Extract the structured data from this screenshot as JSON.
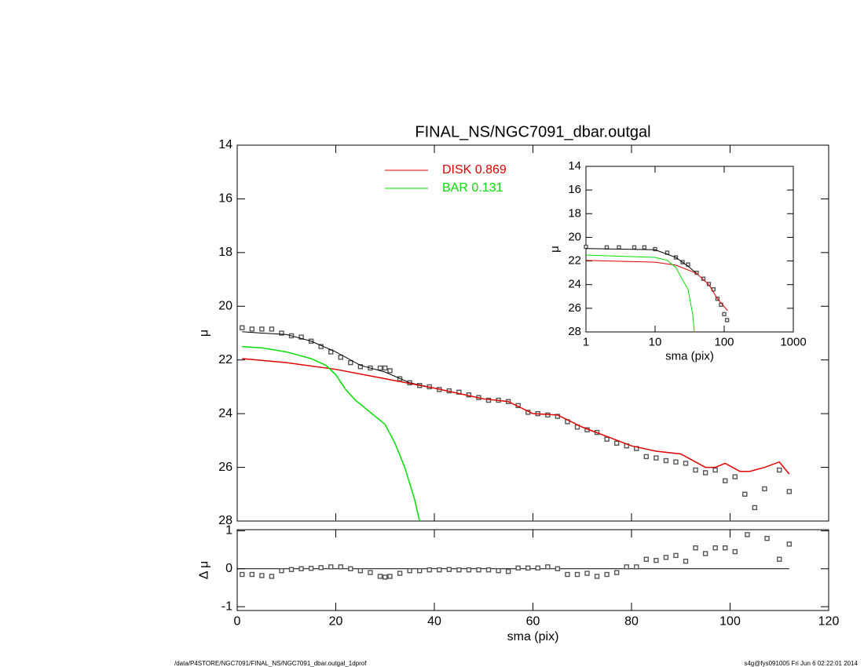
{
  "chart_data": [
    {
      "type": "line",
      "title": "FINAL_NS/NGC7091_dbar.outgal",
      "ylabel": "μ",
      "xlim": [
        0,
        120
      ],
      "xticks": [
        0,
        20,
        40,
        60,
        80,
        100,
        120
      ],
      "show_xtick_labels": false,
      "ylim": [
        14,
        28
      ],
      "yticks": [
        14,
        16,
        18,
        20,
        22,
        24,
        26,
        28
      ],
      "y_inverted": true,
      "xscale": "linear",
      "series": [
        {
          "style": "markers",
          "color": "#555555",
          "x": [
            1,
            3,
            5,
            7,
            9,
            11,
            13,
            15,
            17,
            19,
            21,
            23,
            25,
            27,
            29,
            30,
            31,
            33,
            35,
            37,
            39,
            41,
            43,
            45,
            47,
            49,
            51,
            53,
            55,
            57,
            59,
            61,
            63,
            65,
            67,
            69,
            71,
            73,
            75,
            77,
            79,
            81,
            83,
            85,
            87,
            89,
            91,
            93,
            95,
            97,
            99,
            101,
            103,
            105,
            107,
            110,
            112
          ],
          "values": [
            20.8,
            20.85,
            20.85,
            20.85,
            21.0,
            21.1,
            21.15,
            21.3,
            21.5,
            21.7,
            21.9,
            22.1,
            22.25,
            22.3,
            22.3,
            22.3,
            22.4,
            22.7,
            22.85,
            22.95,
            23.0,
            23.1,
            23.15,
            23.2,
            23.3,
            23.4,
            23.5,
            23.5,
            23.55,
            23.7,
            23.95,
            24.0,
            24.05,
            24.1,
            24.3,
            24.5,
            24.6,
            24.7,
            24.95,
            25.1,
            25.2,
            25.3,
            25.6,
            25.65,
            25.75,
            25.8,
            25.85,
            26.1,
            26.2,
            26.1,
            26.5,
            26.35,
            27.0,
            27.5,
            26.8,
            26.1,
            26.9
          ]
        },
        {
          "style": "line",
          "color": "#000000",
          "width": 1,
          "x": [
            1,
            5,
            10,
            15,
            20,
            25,
            30,
            35,
            40
          ],
          "values": [
            20.95,
            21.0,
            21.05,
            21.3,
            21.7,
            22.2,
            22.45,
            22.85,
            23.05
          ]
        },
        {
          "style": "line",
          "name": "DISK  0.869",
          "color": "#e00000",
          "width": 1.5,
          "x": [
            1,
            10,
            20,
            30,
            40,
            50,
            55,
            60,
            65,
            70,
            75,
            80,
            85,
            90,
            95,
            97,
            99,
            102,
            104,
            107,
            110,
            112
          ],
          "values": [
            21.95,
            22.1,
            22.35,
            22.7,
            23.05,
            23.45,
            23.55,
            24.0,
            24.05,
            24.5,
            24.85,
            25.2,
            25.4,
            25.5,
            26.0,
            26.0,
            25.85,
            26.15,
            26.15,
            26.0,
            25.8,
            26.25
          ]
        },
        {
          "style": "line",
          "name": "BAR  0.131",
          "color": "#00e000",
          "width": 1.5,
          "x": [
            1,
            5,
            10,
            15,
            18,
            20,
            22,
            24,
            26,
            28,
            30,
            32,
            34,
            36,
            37
          ],
          "values": [
            21.5,
            21.55,
            21.7,
            21.95,
            22.2,
            22.55,
            23.1,
            23.5,
            23.8,
            24.1,
            24.4,
            25.1,
            26.0,
            27.2,
            28.0
          ]
        }
      ]
    },
    {
      "type": "line",
      "xlabel": "sma (pix)",
      "ylabel": "μ",
      "xlim": [
        1,
        1000
      ],
      "xticks": [
        1,
        10,
        100,
        1000
      ],
      "show_xtick_labels": true,
      "xscale": "log",
      "ylim": [
        14,
        28
      ],
      "yticks": [
        14,
        16,
        18,
        20,
        22,
        24,
        26,
        28
      ],
      "y_inverted": true,
      "series": [
        {
          "style": "markers",
          "color": "#555555",
          "x": [
            1,
            2,
            3,
            5,
            7,
            10,
            15,
            20,
            25,
            30,
            40,
            50,
            60,
            70,
            80,
            90,
            100,
            110
          ],
          "values": [
            20.8,
            20.85,
            20.85,
            20.85,
            20.85,
            21.0,
            21.3,
            21.7,
            22.1,
            22.3,
            23.0,
            23.5,
            23.95,
            24.4,
            25.2,
            25.7,
            26.5,
            27.0
          ]
        },
        {
          "style": "line",
          "color": "#000000",
          "width": 1,
          "x": [
            1,
            10,
            20,
            30,
            40
          ],
          "values": [
            20.95,
            21.05,
            21.7,
            22.45,
            23.05
          ]
        },
        {
          "style": "line",
          "color": "#e00000",
          "width": 1,
          "x": [
            1,
            10,
            20,
            40,
            60,
            80,
            112
          ],
          "values": [
            21.95,
            22.1,
            22.35,
            23.05,
            24.0,
            25.2,
            26.2
          ]
        },
        {
          "style": "line",
          "color": "#00e000",
          "width": 1,
          "x": [
            1,
            10,
            15,
            20,
            25,
            30,
            35,
            37
          ],
          "values": [
            21.5,
            21.7,
            21.95,
            22.55,
            23.6,
            24.4,
            26.5,
            28
          ]
        }
      ]
    },
    {
      "type": "scatter",
      "xlabel": "sma (pix)",
      "ylabel": "Δ μ",
      "xlim": [
        0,
        120
      ],
      "xticks": [
        0,
        20,
        40,
        60,
        80,
        100,
        120
      ],
      "show_xtick_labels": true,
      "xscale": "linear",
      "ylim": [
        -1.1,
        1.03
      ],
      "yticks": [
        -1,
        0,
        1
      ],
      "y_inverted": false,
      "zero_line": true,
      "series": [
        {
          "style": "markers",
          "color": "#555555",
          "x": [
            1,
            3,
            5,
            7,
            9,
            11,
            13,
            15,
            17,
            19,
            21,
            23,
            25,
            27,
            29,
            30,
            31,
            33,
            35,
            37,
            39,
            41,
            43,
            45,
            47,
            49,
            51,
            53,
            55,
            57,
            59,
            61,
            63,
            65,
            67,
            69,
            71,
            73,
            75,
            77,
            79,
            81,
            83,
            85,
            87,
            89,
            91,
            93,
            95,
            97,
            99,
            101,
            103.5,
            107.5,
            110,
            112
          ],
          "values": [
            -0.15,
            -0.15,
            -0.18,
            -0.2,
            -0.05,
            -0.02,
            0,
            0.01,
            0.03,
            0.05,
            0.05,
            0.0,
            -0.05,
            -0.1,
            -0.2,
            -0.22,
            -0.2,
            -0.12,
            -0.05,
            -0.05,
            -0.03,
            -0.03,
            -0.02,
            -0.03,
            -0.03,
            -0.03,
            -0.03,
            -0.05,
            -0.07,
            0.02,
            0.02,
            0.02,
            0.05,
            0.0,
            -0.15,
            -0.15,
            -0.12,
            -0.2,
            -0.15,
            -0.1,
            0.05,
            0.05,
            0.25,
            0.22,
            0.3,
            0.35,
            0.2,
            0.55,
            0.4,
            0.55,
            0.55,
            0.45,
            0.9,
            0.8,
            0.25,
            0.65
          ]
        }
      ]
    }
  ],
  "footer": {
    "left": "/data/P4STORE/NGC7091/FINAL_NS/NGC7091_dbar.outgal_1dprof",
    "right": "s4g@fys091005  Fri Jun  6 02:22:01 2014"
  }
}
